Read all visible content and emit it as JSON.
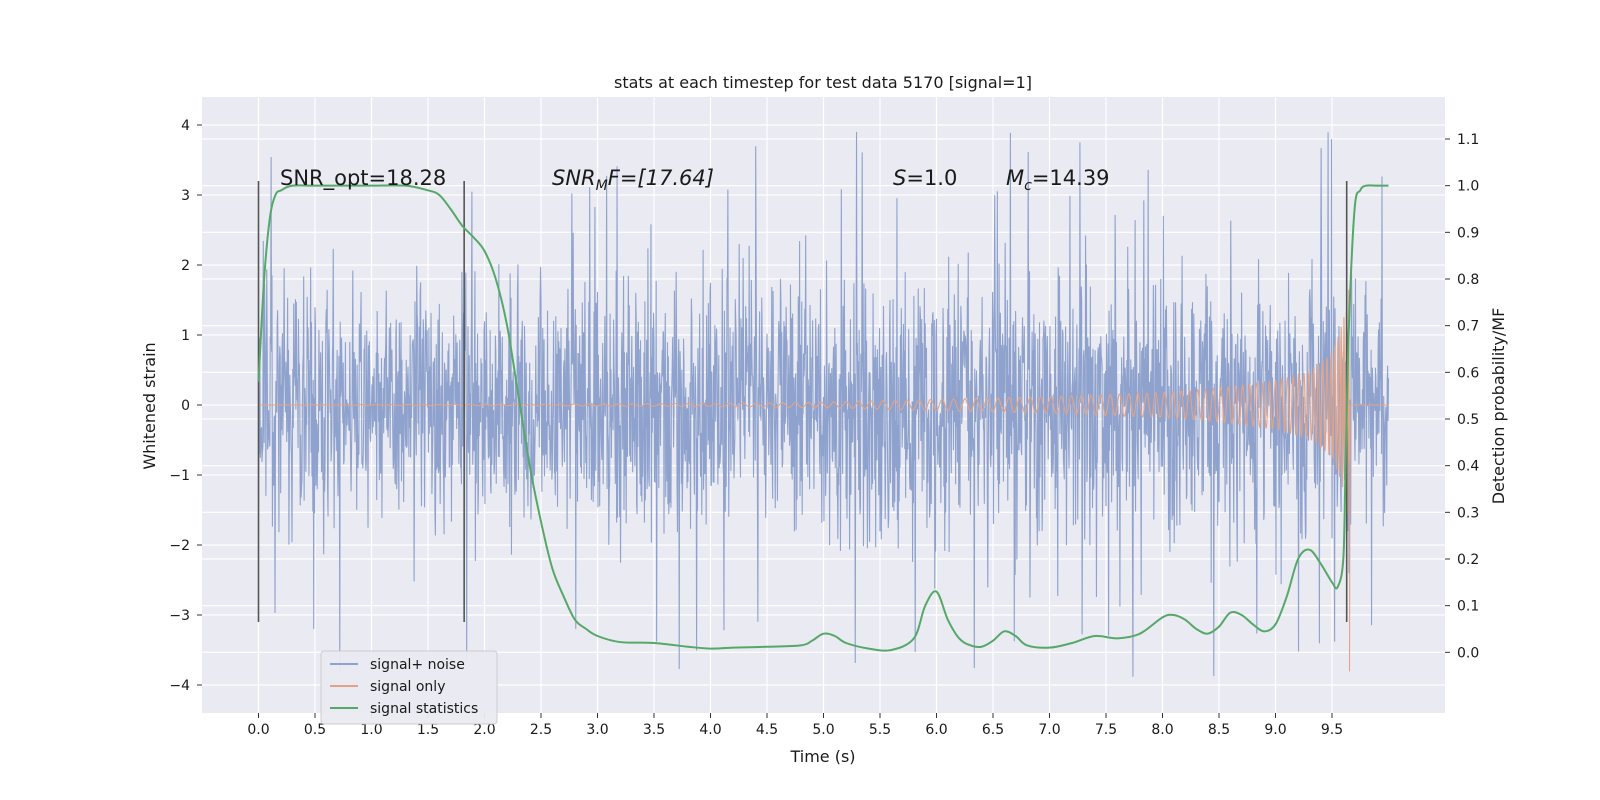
{
  "chart_data": {
    "type": "line",
    "title": "stats at each timestep for test data 5170 [signal=1]",
    "xlabel": "Time (s)",
    "ylabel": "Whitened strain",
    "y2label": "Detection probability/MF",
    "xlim": [
      -0.5,
      10.5
    ],
    "ylim": [
      -4.4,
      4.4
    ],
    "y2lim": [
      -0.13,
      1.19
    ],
    "x_ticks": [
      "0.0",
      "0.5",
      "1.0",
      "1.5",
      "2.0",
      "2.5",
      "3.0",
      "3.5",
      "4.0",
      "4.5",
      "5.0",
      "5.5",
      "6.0",
      "6.5",
      "7.0",
      "7.5",
      "8.0",
      "8.5",
      "9.0",
      "9.5"
    ],
    "y_ticks": [
      "−4",
      "−3",
      "−2",
      "−1",
      "0",
      "1",
      "2",
      "3",
      "4"
    ],
    "y2_ticks": [
      "0.0",
      "0.1",
      "0.2",
      "0.3",
      "0.4",
      "0.5",
      "0.6",
      "0.7",
      "0.8",
      "0.9",
      "1.0",
      "1.1"
    ],
    "grid": true,
    "legend_position": "lower-left",
    "annotations": {
      "snr_opt": "SNR_opt=18.28",
      "snr_mf_base": "SNR",
      "snr_mf_sub": "M",
      "snr_mf_rest": "F=[17.64]",
      "s_base": "S",
      "s_rest": "=1.0",
      "mc_base": "M",
      "mc_sub": "c",
      "mc_rest": "=14.39"
    },
    "vlines_x": [
      0.0,
      1.82,
      9.63
    ],
    "series": [
      {
        "name": "signal+ noise",
        "color": "#8ea2cd",
        "t_range": [
          0.0,
          10.0
        ],
        "band_top": [
          1.3,
          1.3
        ],
        "band_bottom": [
          -1.3,
          -1.3
        ],
        "max_spike": 4.05,
        "min_spike": -3.95
      },
      {
        "name": "signal only",
        "color": "#e4a386",
        "t_range": [
          0.0,
          9.66
        ],
        "chirp_envelope": {
          "t": [
            0.0,
            4.0,
            5.0,
            6.0,
            7.0,
            8.0,
            8.5,
            9.0,
            9.3,
            9.5,
            9.6,
            9.65,
            9.66
          ],
          "amp": [
            0.0,
            0.02,
            0.04,
            0.08,
            0.12,
            0.18,
            0.24,
            0.35,
            0.48,
            0.75,
            1.2,
            1.7,
            0.0
          ]
        },
        "merger_dip": -3.8
      },
      {
        "name": "signal statistics",
        "color": "#55a868",
        "x": [
          0.0,
          0.05,
          0.1,
          0.15,
          0.2,
          0.3,
          0.5,
          0.8,
          1.0,
          1.3,
          1.5,
          1.6,
          1.7,
          1.8,
          1.9,
          2.0,
          2.1,
          2.2,
          2.3,
          2.4,
          2.5,
          2.6,
          2.7,
          2.8,
          2.9,
          3.0,
          3.2,
          3.5,
          3.8,
          4.0,
          4.2,
          4.5,
          4.8,
          4.9,
          5.0,
          5.1,
          5.2,
          5.4,
          5.6,
          5.8,
          5.9,
          6.0,
          6.1,
          6.2,
          6.3,
          6.4,
          6.5,
          6.6,
          6.7,
          6.8,
          7.0,
          7.2,
          7.4,
          7.6,
          7.8,
          8.0,
          8.1,
          8.2,
          8.3,
          8.4,
          8.5,
          8.6,
          8.7,
          8.8,
          8.9,
          9.0,
          9.1,
          9.2,
          9.3,
          9.4,
          9.5,
          9.55,
          9.6,
          9.62,
          9.65,
          9.7,
          9.75,
          9.8,
          9.9,
          10.0
        ],
        "values": [
          0.58,
          0.8,
          0.93,
          0.98,
          0.99,
          1.0,
          1.0,
          1.0,
          1.0,
          1.0,
          0.99,
          0.98,
          0.95,
          0.915,
          0.89,
          0.86,
          0.8,
          0.7,
          0.55,
          0.4,
          0.28,
          0.18,
          0.12,
          0.07,
          0.05,
          0.035,
          0.022,
          0.02,
          0.012,
          0.008,
          0.01,
          0.012,
          0.015,
          0.025,
          0.04,
          0.035,
          0.02,
          0.008,
          0.005,
          0.03,
          0.1,
          0.13,
          0.07,
          0.03,
          0.015,
          0.012,
          0.025,
          0.045,
          0.035,
          0.015,
          0.01,
          0.02,
          0.035,
          0.03,
          0.04,
          0.075,
          0.08,
          0.07,
          0.05,
          0.04,
          0.055,
          0.085,
          0.08,
          0.06,
          0.045,
          0.06,
          0.12,
          0.2,
          0.22,
          0.19,
          0.15,
          0.14,
          0.2,
          0.4,
          0.7,
          0.95,
          0.99,
          1.0,
          1.0,
          1.0
        ]
      }
    ]
  }
}
